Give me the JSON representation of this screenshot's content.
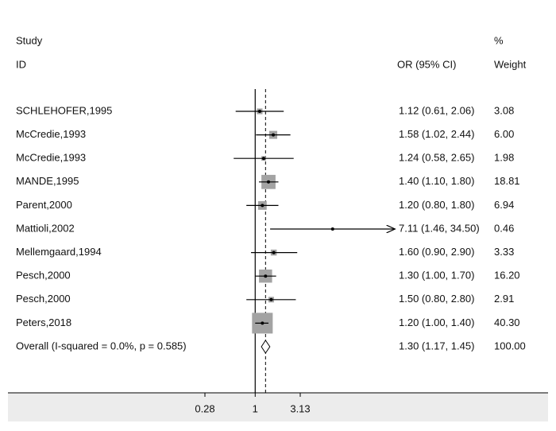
{
  "chart_data": {
    "type": "forest",
    "headers": {
      "study": "Study",
      "id": "ID",
      "effect": "OR (95% CI)",
      "percent": "%",
      "weight": "Weight"
    },
    "categories": [
      "SCHLEHOFER,1995",
      "McCredie,1993",
      "McCredie,1993",
      "MANDE,1995",
      "Parent,2000",
      "Mattioli,2002",
      "Mellemgaard,1994",
      "Pesch,2000",
      "Pesch,2000",
      "Peters,2018",
      "Overall  (I-squared = 0.0%, p = 0.585)"
    ],
    "values": [
      1.12,
      1.58,
      1.24,
      1.4,
      1.2,
      7.11,
      1.6,
      1.3,
      1.5,
      1.2,
      1.3
    ],
    "lower": [
      0.61,
      1.02,
      0.58,
      1.1,
      0.8,
      1.46,
      0.9,
      1.0,
      0.8,
      1.0,
      1.17
    ],
    "upper": [
      2.06,
      2.44,
      2.65,
      1.8,
      1.8,
      34.5,
      2.9,
      1.7,
      2.8,
      1.4,
      1.45
    ],
    "value_labels": [
      "1.12 (0.61, 2.06)",
      "1.58 (1.02, 2.44)",
      "1.24 (0.58, 2.65)",
      "1.40 (1.10, 1.80)",
      "1.20 (0.80, 1.80)",
      "7.11 (1.46, 34.50)",
      "1.60 (0.90, 2.90)",
      "1.30 (1.00, 1.70)",
      "1.50 (0.80, 2.80)",
      "1.20 (1.00, 1.40)",
      "1.30 (1.17, 1.45)"
    ],
    "weights": [
      3.08,
      6.0,
      1.98,
      18.81,
      6.94,
      0.46,
      3.33,
      16.2,
      2.91,
      40.3,
      100.0
    ],
    "weight_labels": [
      "3.08",
      "6.00",
      "1.98",
      "18.81",
      "6.94",
      "0.46",
      "3.33",
      "16.20",
      "2.91",
      "40.30",
      "100.00"
    ],
    "x_scale": "log",
    "xlim": [
      0.28,
      3.13
    ],
    "xticks": [
      0.28,
      1,
      3.13
    ],
    "box_color": "#a3a3a3",
    "line_color": "#000000"
  }
}
